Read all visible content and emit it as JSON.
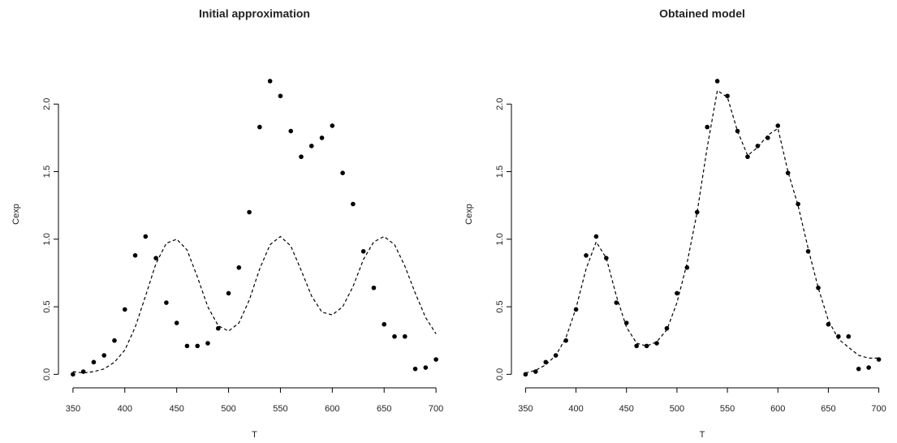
{
  "chart_data": [
    {
      "type": "scatter",
      "title": "Initial approximation",
      "x_label": "T",
      "y_label": "Cexp",
      "x": [
        350,
        360,
        370,
        380,
        390,
        400,
        410,
        420,
        430,
        440,
        450,
        460,
        470,
        480,
        490,
        500,
        510,
        520,
        530,
        540,
        550,
        560,
        570,
        580,
        590,
        600,
        610,
        620,
        630,
        640,
        650,
        660,
        670,
        680,
        690,
        700
      ],
      "series": [
        {
          "type": "scatter",
          "color": "#000000",
          "values": [
            0.0,
            0.02,
            0.09,
            0.14,
            0.25,
            0.48,
            0.88,
            1.02,
            0.86,
            0.53,
            0.38,
            0.21,
            0.21,
            0.23,
            0.34,
            0.6,
            0.79,
            1.2,
            1.83,
            2.17,
            2.06,
            1.8,
            1.61,
            1.69,
            1.75,
            1.84,
            1.49,
            1.26,
            0.91,
            0.64,
            0.37,
            0.28,
            0.28,
            0.04,
            0.05,
            0.11
          ]
        },
        {
          "type": "line",
          "dashed": true,
          "color": "#000000",
          "values": [
            0.02,
            0.01,
            0.02,
            0.04,
            0.09,
            0.18,
            0.35,
            0.58,
            0.82,
            0.97,
            1.0,
            0.92,
            0.72,
            0.5,
            0.36,
            0.32,
            0.38,
            0.55,
            0.78,
            0.96,
            1.02,
            0.95,
            0.77,
            0.58,
            0.46,
            0.44,
            0.5,
            0.65,
            0.85,
            0.98,
            1.02,
            0.96,
            0.8,
            0.6,
            0.42,
            0.3
          ]
        }
      ],
      "xlim": [
        336,
        714
      ],
      "xticks": [
        350,
        400,
        450,
        500,
        550,
        600,
        650,
        700
      ],
      "ylim": [
        -0.1,
        2.47
      ],
      "yticks": [
        {
          "value": 0,
          "label": "0.0"
        },
        {
          "value": 0.5,
          "label": "0.5"
        },
        {
          "value": 1,
          "label": "1.0"
        },
        {
          "value": 1.5,
          "label": "1.5"
        },
        {
          "value": 2,
          "label": "2.0"
        }
      ]
    },
    {
      "type": "scatter",
      "title": "Obtained model",
      "x_label": "T",
      "y_label": "Cexp",
      "x": [
        350,
        360,
        370,
        380,
        390,
        400,
        410,
        420,
        430,
        440,
        450,
        460,
        470,
        480,
        490,
        500,
        510,
        520,
        530,
        540,
        550,
        560,
        570,
        580,
        590,
        600,
        610,
        620,
        630,
        640,
        650,
        660,
        670,
        680,
        690,
        700
      ],
      "series": [
        {
          "type": "scatter",
          "color": "#000000",
          "values": [
            0.0,
            0.02,
            0.09,
            0.14,
            0.25,
            0.48,
            0.88,
            1.02,
            0.86,
            0.53,
            0.38,
            0.21,
            0.21,
            0.23,
            0.34,
            0.6,
            0.79,
            1.2,
            1.83,
            2.17,
            2.06,
            1.8,
            1.61,
            1.69,
            1.75,
            1.84,
            1.49,
            1.26,
            0.91,
            0.64,
            0.37,
            0.28,
            0.28,
            0.04,
            0.05,
            0.11
          ]
        },
        {
          "type": "line",
          "dashed": true,
          "color": "#000000",
          "values": [
            0.01,
            0.03,
            0.07,
            0.14,
            0.27,
            0.49,
            0.78,
            0.98,
            0.86,
            0.58,
            0.35,
            0.23,
            0.21,
            0.24,
            0.33,
            0.53,
            0.82,
            1.2,
            1.68,
            2.1,
            2.05,
            1.8,
            1.62,
            1.68,
            1.77,
            1.82,
            1.5,
            1.25,
            0.93,
            0.64,
            0.4,
            0.26,
            0.2,
            0.14,
            0.12,
            0.12
          ]
        }
      ],
      "xlim": [
        336,
        714
      ],
      "xticks": [
        350,
        400,
        450,
        500,
        550,
        600,
        650,
        700
      ],
      "ylim": [
        -0.1,
        2.47
      ],
      "yticks": [
        {
          "value": 0,
          "label": "0.0"
        },
        {
          "value": 0.5,
          "label": "0.5"
        },
        {
          "value": 1,
          "label": "1.0"
        },
        {
          "value": 1.5,
          "label": "1.5"
        },
        {
          "value": 2,
          "label": "2.0"
        }
      ]
    }
  ]
}
